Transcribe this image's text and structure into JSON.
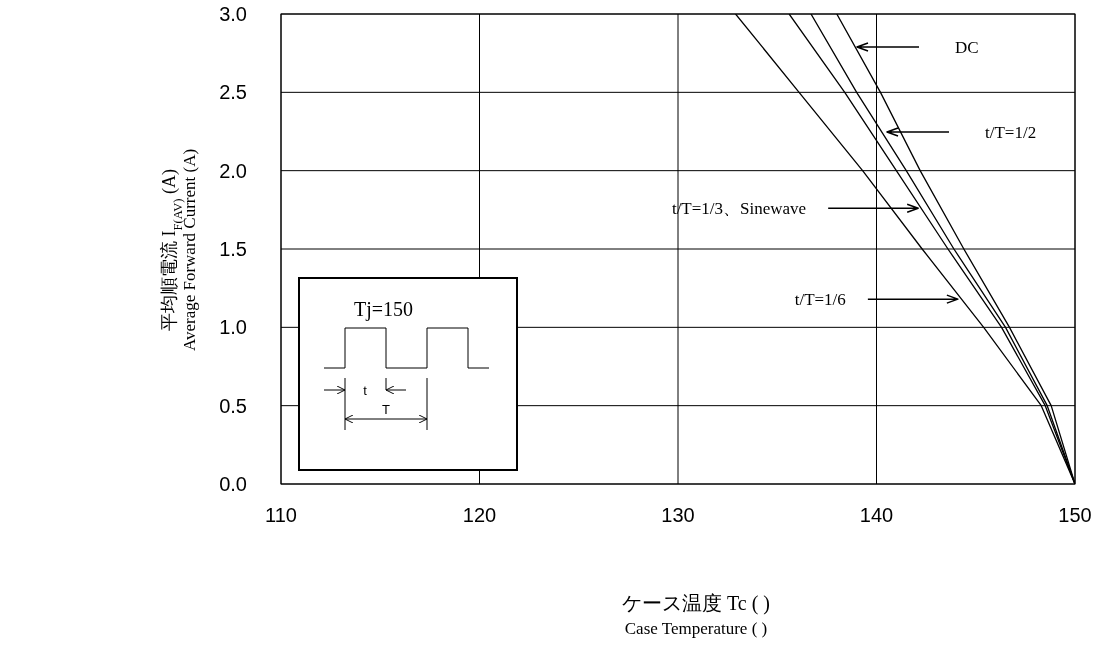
{
  "chart_data": {
    "type": "line",
    "xlabel": "ケース温度 Tc (   )\nCase Temperature (   )",
    "ylabel": "平均順電流 I$_{F(AV)}$ (A)\nAverage Forward Current (A)",
    "xlim": [
      110,
      150
    ],
    "xticks": [
      110,
      120,
      130,
      140,
      150
    ],
    "ylim": [
      0,
      3
    ],
    "yticks": [
      {
        "value": 0,
        "label": "0.0"
      },
      {
        "value": 0.5,
        "label": "0.5"
      },
      {
        "value": 1,
        "label": "1.0"
      },
      {
        "value": 1.5,
        "label": "1.5"
      },
      {
        "value": 2,
        "label": "2.0"
      },
      {
        "value": 2.5,
        "label": "2.5"
      },
      {
        "value": 3,
        "label": "3.0"
      }
    ],
    "grid": true,
    "marker": "none",
    "line_style": "solid",
    "series": [
      {
        "color": "#000000",
        "x": [
          132.9,
          136.1,
          139.3,
          142.3,
          145.4,
          148.3,
          150
        ],
        "values": [
          3,
          2.5,
          2,
          1.5,
          1,
          0.5,
          0
        ]
      },
      {
        "color": "#000000",
        "x": [
          135.6,
          138.4,
          141.0,
          143.6,
          146.3,
          148.5,
          150
        ],
        "values": [
          3,
          2.5,
          2,
          1.5,
          1,
          0.5,
          0
        ]
      },
      {
        "color": "#000000",
        "x": [
          136.7,
          139.0,
          141.5,
          143.9,
          146.5,
          148.6,
          150
        ],
        "values": [
          3,
          2.5,
          2,
          1.5,
          1,
          0.5,
          0
        ]
      },
      {
        "color": "#000000",
        "x": [
          138.0,
          140.2,
          142.2,
          144.4,
          146.7,
          148.8,
          150
        ],
        "values": [
          3,
          2.5,
          2,
          1.5,
          1,
          0.5,
          0
        ]
      }
    ],
    "annotations": [
      {
        "text": "t/T=1/3、Sinewave",
        "x": 142.2,
        "y": 1.76
      },
      {
        "text": "t/T=1/6",
        "x": 144.2,
        "y": 1.18
      },
      "DC",
      "t/T=1/2",
      "Tj=150",
      "t",
      "T"
    ]
  }
}
